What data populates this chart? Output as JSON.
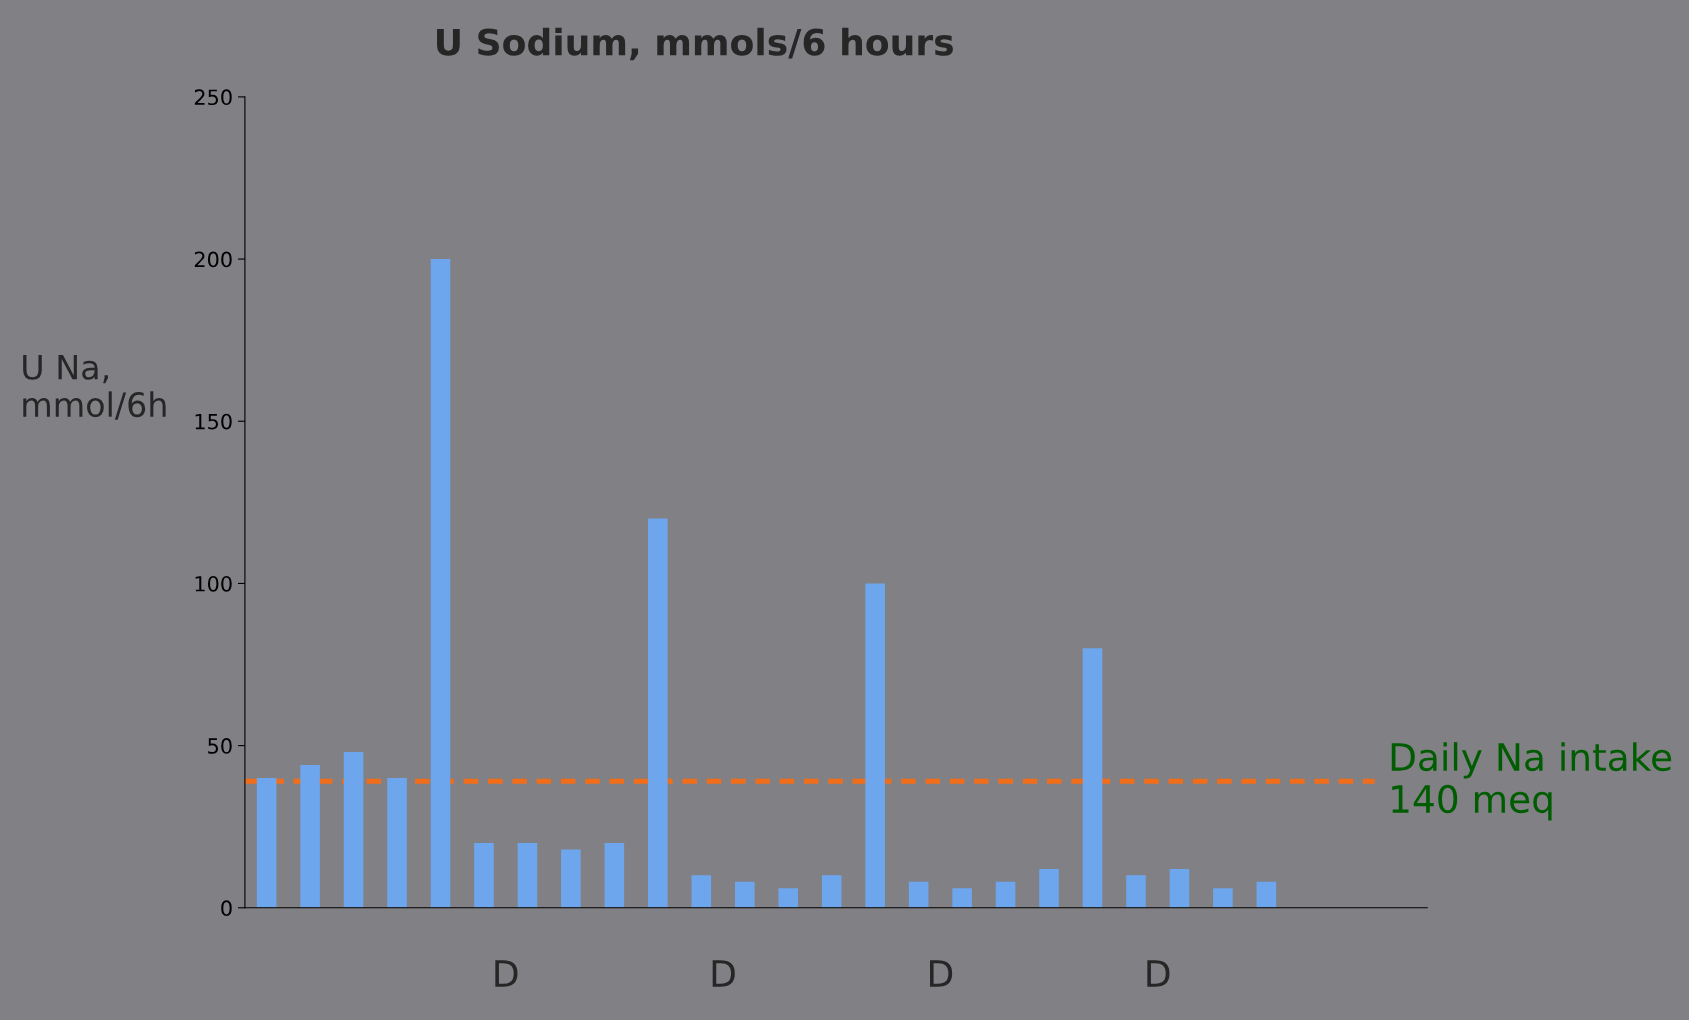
{
  "chart_data": {
    "type": "bar",
    "title": "U Sodium, mmols/6 hours",
    "ylabel": "U Na,\nmmol/6h",
    "categories": [
      null,
      null,
      null,
      null,
      null,
      null,
      null,
      null,
      null,
      null,
      null,
      null,
      null,
      null,
      null,
      null,
      null,
      null,
      null,
      null,
      null,
      null,
      null,
      null
    ],
    "series": [
      {
        "color": "#6ea6ee",
        "values": [
          40,
          44,
          48,
          40,
          200,
          20,
          20,
          18,
          20,
          120,
          10,
          8,
          6,
          10,
          100,
          8,
          6,
          8,
          12,
          80,
          10,
          12,
          6,
          8
        ]
      }
    ],
    "ylim": [
      0,
      250
    ],
    "yticks": [
      0,
      50,
      100,
      150,
      200,
      250
    ],
    "ref_lines": [
      {
        "axis": "y",
        "value": 39,
        "label": "Daily Na intake\n140 meq",
        "color": "#f26d1a",
        "line_style": "dashed"
      }
    ],
    "annotations": [
      "D",
      "D",
      "D",
      "D"
    ],
    "grid": false,
    "legend": false
  }
}
